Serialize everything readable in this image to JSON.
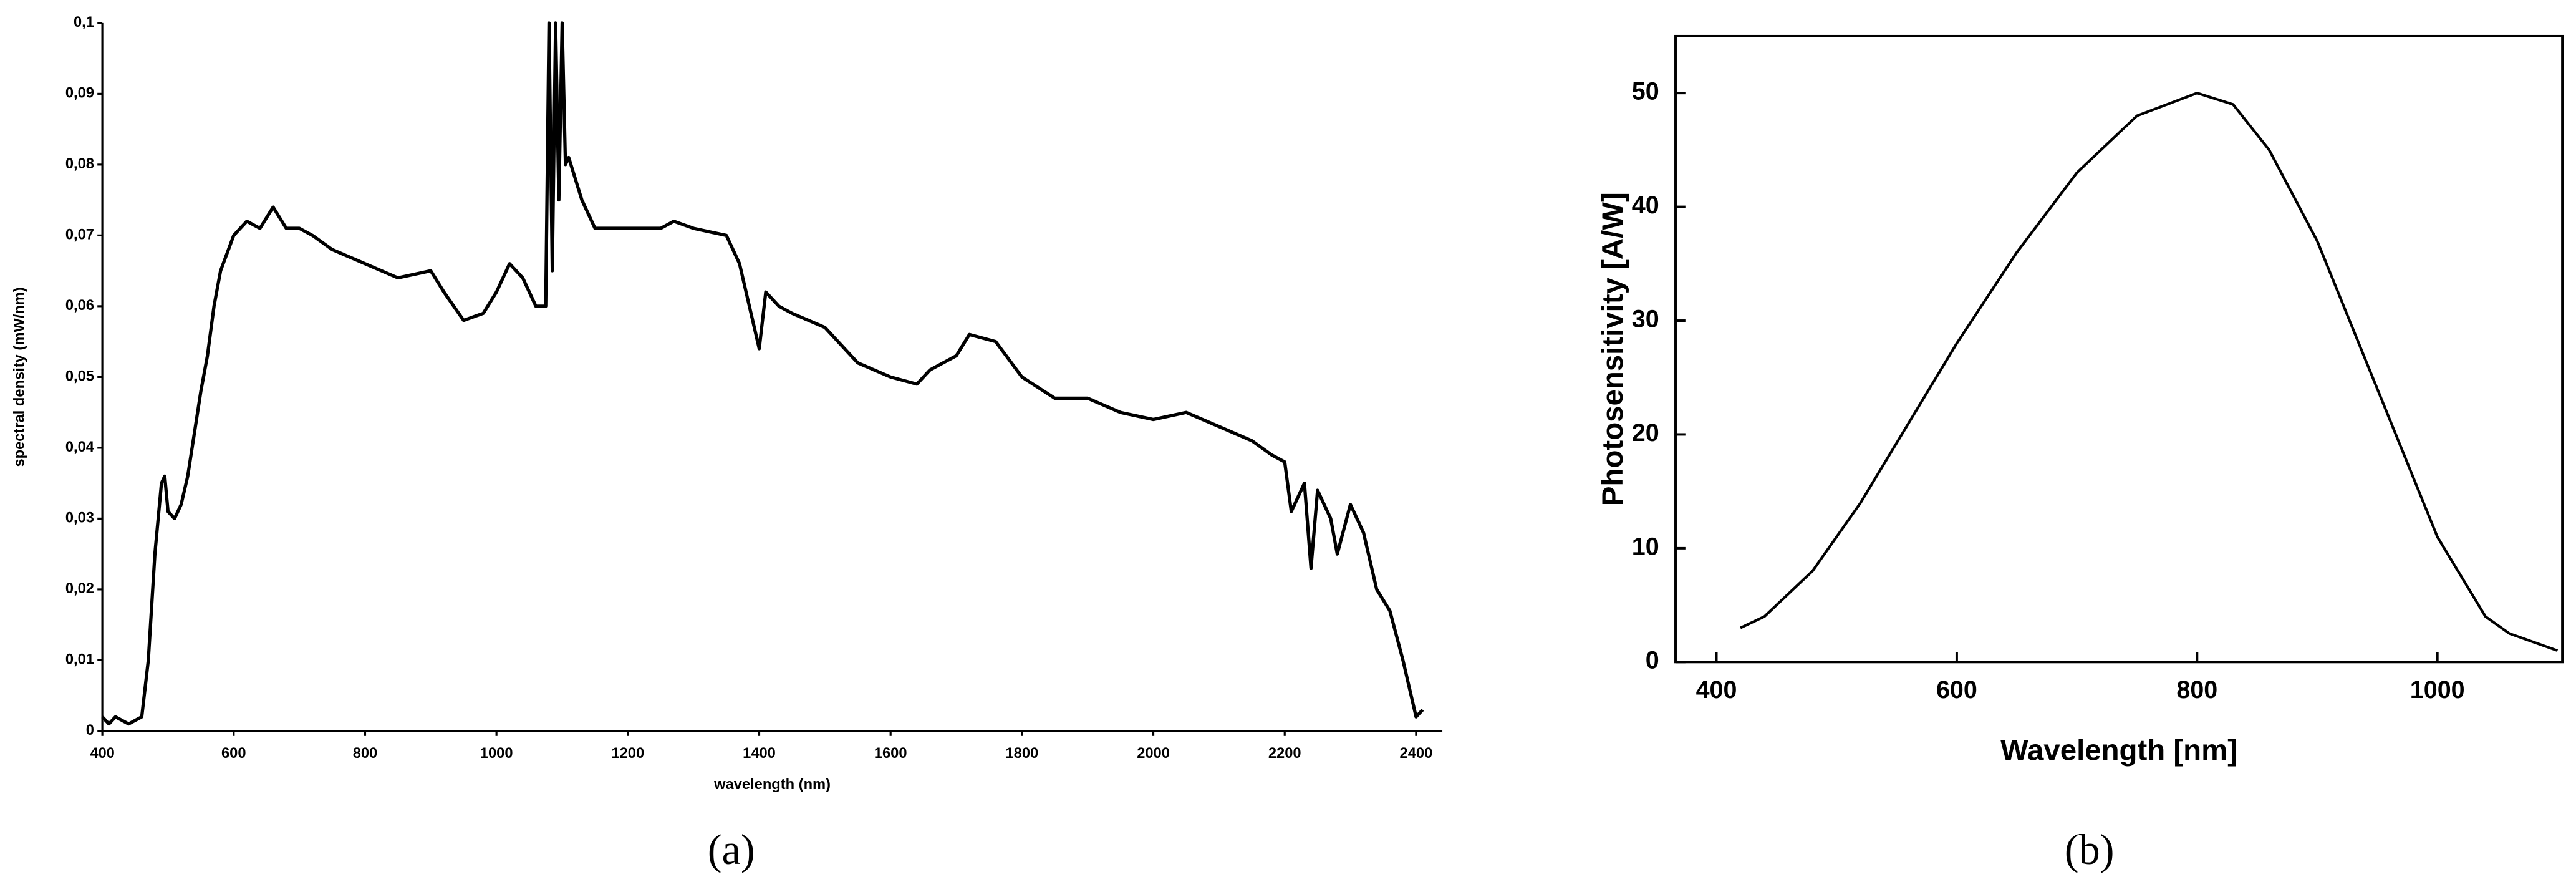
{
  "chart_data": [
    {
      "type": "line",
      "caption": "(a)",
      "xlabel": "wavelength (nm)",
      "ylabel": "spectral density (mW/nm)",
      "xlim": [
        400,
        2440
      ],
      "ylim": [
        0,
        0.1
      ],
      "xticks": [
        400,
        600,
        800,
        1000,
        1200,
        1400,
        1600,
        1800,
        2000,
        2200,
        2400
      ],
      "yticks": [
        0,
        {
          "value": 0.01,
          "label": "0,01"
        },
        {
          "value": 0.02,
          "label": "0,02"
        },
        {
          "value": 0.03,
          "label": "0,03"
        },
        {
          "value": 0.04,
          "label": "0,04"
        },
        {
          "value": 0.05,
          "label": "0,05"
        },
        {
          "value": 0.06,
          "label": "0,06"
        },
        {
          "value": 0.07,
          "label": "0,07"
        },
        {
          "value": 0.08,
          "label": "0,08"
        },
        {
          "value": 0.09,
          "label": "0,09"
        },
        {
          "value": 0.1,
          "label": "0,1"
        }
      ],
      "frame": false,
      "series": [
        {
          "color": "#000000",
          "x": [
            400,
            410,
            420,
            440,
            460,
            470,
            480,
            490,
            495,
            500,
            510,
            520,
            530,
            540,
            550,
            560,
            570,
            580,
            600,
            620,
            640,
            660,
            680,
            700,
            720,
            750,
            800,
            850,
            900,
            920,
            950,
            980,
            1000,
            1020,
            1040,
            1060,
            1075,
            1080,
            1085,
            1090,
            1095,
            1100,
            1105,
            1110,
            1130,
            1150,
            1200,
            1250,
            1270,
            1300,
            1350,
            1370,
            1380,
            1390,
            1400,
            1410,
            1430,
            1450,
            1500,
            1550,
            1600,
            1640,
            1660,
            1700,
            1720,
            1760,
            1800,
            1850,
            1900,
            1950,
            2000,
            2050,
            2100,
            2150,
            2180,
            2200,
            2210,
            2230,
            2240,
            2250,
            2270,
            2280,
            2300,
            2320,
            2340,
            2360,
            2380,
            2390,
            2400,
            2410
          ],
          "values": [
            0.002,
            0.001,
            0.002,
            0.001,
            0.002,
            0.01,
            0.025,
            0.035,
            0.036,
            0.031,
            0.03,
            0.032,
            0.036,
            0.042,
            0.048,
            0.053,
            0.06,
            0.065,
            0.07,
            0.072,
            0.071,
            0.074,
            0.071,
            0.071,
            0.07,
            0.068,
            0.066,
            0.064,
            0.065,
            0.062,
            0.058,
            0.059,
            0.062,
            0.066,
            0.064,
            0.06,
            0.06,
            0.1,
            0.065,
            0.1,
            0.075,
            0.1,
            0.08,
            0.081,
            0.075,
            0.071,
            0.071,
            0.071,
            0.072,
            0.071,
            0.07,
            0.066,
            0.062,
            0.058,
            0.054,
            0.062,
            0.06,
            0.059,
            0.057,
            0.052,
            0.05,
            0.049,
            0.051,
            0.053,
            0.056,
            0.055,
            0.05,
            0.047,
            0.047,
            0.045,
            0.044,
            0.045,
            0.043,
            0.041,
            0.039,
            0.038,
            0.031,
            0.035,
            0.023,
            0.034,
            0.03,
            0.025,
            0.032,
            0.028,
            0.02,
            0.017,
            0.01,
            0.006,
            0.002,
            0.003
          ]
        }
      ]
    },
    {
      "type": "line",
      "caption": "(b)",
      "xlabel": "Wavelength [nm]",
      "ylabel": "Photosensitivity [A/W]",
      "xlim": [
        366,
        1104
      ],
      "ylim": [
        0,
        55
      ],
      "xticks": [
        400,
        600,
        800,
        1000
      ],
      "yticks": [
        0,
        10,
        20,
        30,
        40,
        50
      ],
      "frame": true,
      "series": [
        {
          "color": "#000000",
          "x": [
            420,
            440,
            480,
            520,
            560,
            600,
            650,
            700,
            750,
            800,
            830,
            860,
            900,
            950,
            1000,
            1040,
            1060,
            1100
          ],
          "values": [
            3,
            4,
            8,
            14,
            21,
            28,
            36,
            43,
            48,
            50,
            49,
            45,
            37,
            24,
            11,
            4,
            2.5,
            1
          ]
        }
      ]
    }
  ]
}
